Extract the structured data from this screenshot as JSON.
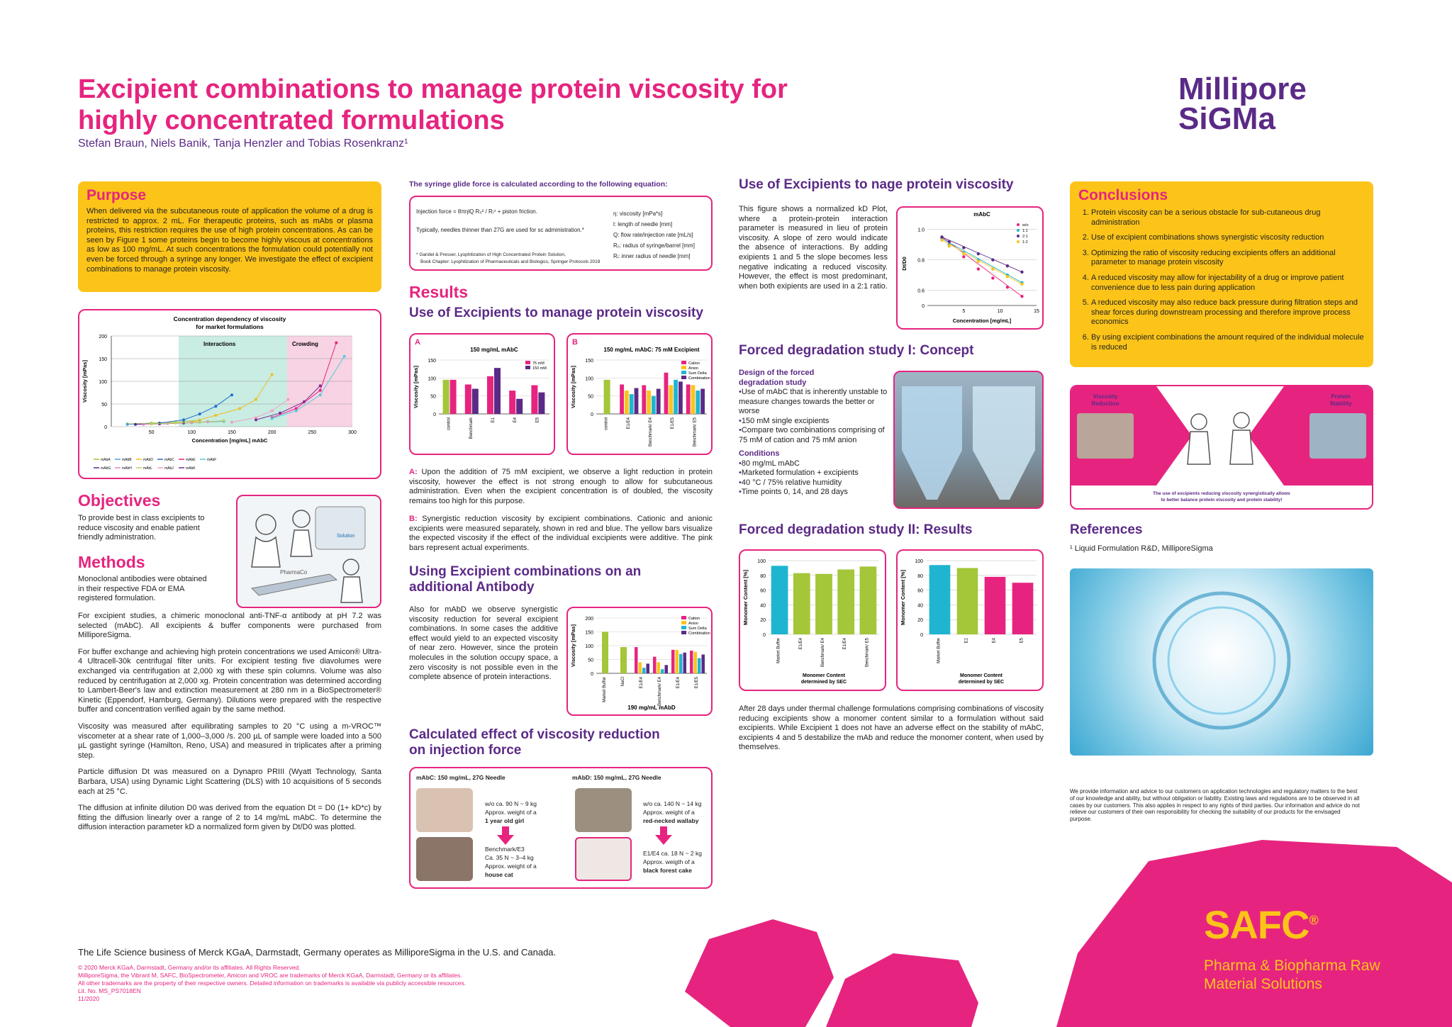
{
  "header": {
    "title_line1": "Excipient combinations to manage protein viscosity for",
    "title_line2": "highly concentrated formulations",
    "authors": "Stefan Braun, Niels Banik, Tanja Henzler and Tobias Rosenkranz¹",
    "logo_line1": "Millipore",
    "logo_line2": "SiGMa"
  },
  "purpose": {
    "heading": "Purpose",
    "text": "When delivered via the subcutaneous route of application the volume of a drug is restricted to approx. 2 mL. For therapeutic proteins, such as mAbs or plasma proteins, this restriction requires the use of high protein concentrations. As can be seen by Figure 1 some proteins begin to become highly viscous at concentrations as low as 100 mg/mL. At such concentrations the formulation could potentially not even be forced through a syringe any longer. We investigate the effect of excipient combinations to manage protein viscosity."
  },
  "conc_chart": {
    "title1": "Concentration dependency of viscosity",
    "title2": "for market formulations",
    "zone1": "Interactions",
    "zone2": "Crowding",
    "xlabel": "Concentration [mg/mL] mAbC",
    "ylabel": "Viscosity [mPas]",
    "yticks": [
      "200",
      "150",
      "100",
      "50",
      "0"
    ],
    "xticks": [
      "50",
      "100",
      "150",
      "200",
      "250",
      "300"
    ],
    "legend": [
      "mAbA",
      "mAbB",
      "mAbD",
      "mAbC",
      "mAbE",
      "mAbF",
      "mAbG",
      "mAbH",
      "mAbL",
      "mAbJ",
      "mAbK"
    ]
  },
  "objectives": {
    "heading": "Objectives",
    "text": "To provide best in class excipients to reduce viscosity and enable patient friendly administration."
  },
  "methods": {
    "heading": "Methods",
    "p1": "Monoclonal antibodies were obtained in their respective FDA or EMA registered formulation.",
    "p2": "For excipient studies, a chimeric monoclonal anti-TNF-α antibody at pH 7.2 was selected (mAbC). All excipients & buffer components were purchased from MilliporeSigma.",
    "p3": "For buffer exchange and achieving high protein concentrations we used Amicon® Ultra-4 Ultracell-30k centrifugal filter units. For excipient testing five diavolumes were exchanged via centrifugation at 2,000 xg with these spin columns. Volume was also reduced by centrifugation at 2,000 xg. Protein concentration was determined according to Lambert-Beer's law and extinction measurement at 280 nm in a BioSpectrometer® Kinetic (Eppendorf, Hamburg, Germany). Dilutions were prepared with the respective buffer and concentration verified again by the same method.",
    "p4": "Viscosity was measured after equilibrating samples to 20 °C using a m-VROC™ viscometer at a shear rate of 1,000–3,000 /s. 200 µL of sample were loaded into a 500 µL gastight syringe (Hamilton, Reno, USA) and measured in triplicates after a priming step.",
    "p5": "Particle diffusion Dt was measured on a Dynapro PRIII (Wyatt Technology, Santa Barbara, USA) using Dynamic Light Scattering (DLS) with 10 acquisitions of 5 seconds each at 25 °C.",
    "p6": "The diffusion at infinite dilution D0 was derived from the equation Dt = D0 (1+ kD*c) by fitting the diffusion linearly over a range of 2 to 14 mg/mL mAbC. To determine the diffusion interaction parameter kD a normalized form given by Dt/D0 was plotted.",
    "img_label1": "PharmaCo",
    "img_label2": "Solution"
  },
  "syringe": {
    "heading": "The syringe glide force is calculated according to the following equation:",
    "eq": "Injection force = 8πηlQ  R₀² / Rᵢ⁴  + piston friction.",
    "note": "Typically, needles thinner than 27G are used for sc administration.*",
    "legend": [
      "η: viscosity [mPa*s]",
      "l: length of needle [mm]",
      "Q: flow rate/injection rate [mL/s]",
      "R₀: radius of syringe/barrel [mm]",
      "Rᵢ: inner radius of needle [mm]"
    ],
    "ref1": "* Garidel & Presser, Lyophilization of High Concentrated Protein Solution,",
    "ref2": "Book Chapter: Lyophilization of Pharmaceuticals and Biologics, Springer Protocols 2019"
  },
  "results": {
    "heading": "Results",
    "sub": "Use of Excipients to manage protein viscosity",
    "a_text": "Upon the addition of 75 mM excipient, we observe a light reduction in protein viscosity, however the effect is not strong enough to allow for subcutaneous administration. Even when the excipient concentration is of doubled, the viscosity remains too high for this purpose.",
    "b_text": "Synergistic reduction viscosity by excipient combinations. Cationic and anionic excipients were measured separately, shown in red and blue. The yellow bars visualize the expected viscosity if the effect of the individual excipients were additive. The pink bars represent actual experiments.",
    "a_tag": "A:",
    "b_tag": "B:"
  },
  "chartA": {
    "letter": "A",
    "title": "150 mg/mL mAbC",
    "ylabel": "Viscosity [mPas]",
    "yticks": [
      "150",
      "100",
      "50",
      "0"
    ],
    "legend": [
      "75 mM",
      "150 mM"
    ],
    "cats": [
      "control",
      "Benchmark",
      "E1",
      "E4",
      "E5"
    ]
  },
  "chartB": {
    "letter": "B",
    "title": "150 mg/mL mAbC: 75 mM Excipient",
    "ylabel": "Viscosity [mPas]",
    "yticks": [
      "150",
      "100",
      "50",
      "0"
    ],
    "legend": [
      "Cation",
      "Anion",
      "Sum Delta",
      "Combination"
    ],
    "cats": [
      "control",
      "E1/E4",
      "Benchmark/ E4",
      "E1/E5",
      "Benchmark/ E5"
    ]
  },
  "combo": {
    "heading1": "Using Excipient combinations on an",
    "heading2": "additional Antibody",
    "text": "Also for mAbD we observe synergistic viscosity reduction for several excipient combinations. In some cases the additive effect would yield to an expected viscosity of near zero. However, since the protein molecules in the solution occupy space, a zero viscosity is not possible even in the complete absence of protein interactions."
  },
  "chartD": {
    "title": "190 mg/mL mAbD",
    "ylabel": "Viscosity [mPas]",
    "yticks": [
      "200",
      "150",
      "100",
      "50",
      "0"
    ],
    "legend": [
      "Cation",
      "Anion",
      "Sum Delta",
      "Combination"
    ],
    "cats": [
      "Market Buffer",
      "NaCl",
      "E1/E4",
      "Benchmark/ E4",
      "E1/E4",
      "E1/E5"
    ]
  },
  "injection": {
    "heading1": "Calculated effect of viscosity reduction",
    "heading2": "on injection force",
    "c1_title": "mAbC: 150 mg/mL, 27G Needle",
    "c1_t1": "w/o ca. 90 N ~ 9 kg",
    "c1_t2": "Approx. weight of a",
    "c1_t3": "1 year old girl",
    "c1_t4": "Benchmark/E3",
    "c1_t5": "Ca. 35 N ~ 3–4 kg",
    "c1_t6": "Approx. weight of a",
    "c1_t7": "house cat",
    "c2_title": "mAbD: 150 mg/mL, 27G Needle",
    "c2_t1": "w/o ca. 140 N ~ 14 kg",
    "c2_t2": "Approx. weight of a",
    "c2_t3": "red-necked wallaby",
    "c2_t4": "E1/E4 ca. 18 N ~ 2 kg",
    "c2_t5": "Approx. weigth of a",
    "c2_t6": "black forest cake"
  },
  "kd": {
    "heading": "Use of Excipients to  nage protein viscosity",
    "text": "This figure shows a normalized kD Plot, where a protein-protein interaction parameter is measured in lieu of protein viscosity. A slope of zero would indicate the absence of interactions. By adding exipients 1 and 5 the slope becomes less negative indicating a reduced viscosity. However, the effect is most predominant, when both exipients are used in a 2:1 ratio.",
    "chart_title": "mAbC",
    "xlabel": "Concentration [mg/mL]",
    "ylabel": "Dt/D0",
    "yticks": [
      "1.0",
      "0.8",
      "0.6",
      "0"
    ],
    "xticks": [
      "5",
      "10",
      "15"
    ],
    "legend": [
      "w/o",
      "1:1",
      "2:1",
      "1:2"
    ]
  },
  "forced1": {
    "heading": "Forced degradation study I: Concept",
    "design_h1": "Design of the forced",
    "design_h2": "degradation study",
    "design": [
      "Use of mAbC that is inherently unstable to measure changes towards the better or worse",
      "150 mM single excipients",
      "Compare two combinations comprising of 75 mM of cation and 75 mM anion"
    ],
    "cond_h": "Conditions",
    "cond": [
      "80 mg/mL mAbC",
      "Marketed formulation + excipients",
      "40 °C / 75% relative humidity",
      "Time points 0, 14, and 28 days"
    ]
  },
  "forced2": {
    "heading": "Forced degradation study II: Results",
    "ylabel": "Monomer Content [%]",
    "yticks": [
      "100",
      "80",
      "60",
      "40",
      "20",
      "0"
    ],
    "xl1": "Monomer Content",
    "xl2": "determined by SEC",
    "c1_cats": [
      "Market Buffer",
      "E1/E4",
      "Benchmark/ E4",
      "E1/E4",
      "Benchmark/ E5"
    ],
    "c2_cats": [
      "Market Buffer",
      "E1",
      "E4",
      "E5"
    ],
    "text": "After 28 days under thermal challenge formulations comprising combinations of viscosity reducing excipients show a monomer content similar to a formulation without said excipients. While Excipient 1 does not have an adverse effect on the stability of mAbC, excipients 4 and 5 destabilize the mAb and reduce the monomer content, when used by themselves."
  },
  "conclusions": {
    "heading": "Conclusions",
    "items": [
      "Protein viscosity can be a serious obstacle for sub-cutaneous drug administration",
      "Use of excipient combinations shows synergistic viscosity reduction",
      "Optimizing the ratio of viscosity reducing excipients offers an additional parameter to manage protein viscosity",
      "A reduced viscosity may allow for injectability of a drug or improve patient convenience due to less pain during application",
      "A reduced viscosity may also reduce back pressure during filtration steps and shear forces during downstream processing and therefore improve process economics",
      "By using excipient combinations the amount required of the individual molecule is reduced"
    ]
  },
  "balance": {
    "left1": "Viscosity",
    "left2": "Reduction",
    "right1": "Protein",
    "right2": "Stability",
    "caption1": "The use of excipients reducing viscosity synergistically allows",
    "caption2": "to better balance protein viscosity and protein stability!"
  },
  "references": {
    "heading": "References",
    "item": "¹ Liquid Formulation R&D, MilliporeSigma"
  },
  "disclaimer": "We provide information and advice to our customers on application technologies and regulatory matters to the best of our knowledge and ability, but without obligation or liability. Existing laws and regulations are to be observed in all cases by our customers. This also applies in respect to any rights of third parties. Our information and advice do not relieve our customers of their own responsibility for checking the suitability of our products for the envisaged purpose.",
  "footer": {
    "main": "The Life Science business of Merck KGaA, Darmstadt, Germany operates as MilliporeSigma in the U.S. and Canada.",
    "l1": "© 2020 Merck KGaA, Darmstadt, Germany and/or its affiliates. All Rights Reserved.",
    "l2": "MilliporeSigma, the Vibrant M, SAFC, BioSpectrometer, Amicon and VROC are trademarks of Merck KGaA, Darmstadt, Germany or its affiliates.",
    "l3": "All other trademarks are the property of their respective owners. Detailed information on trademarks is available via publicly accessible resources.",
    "l4": "Lit. No. MS_PS7018EN",
    "l5": "11/2020",
    "safc": "SAFC",
    "safc_reg": "®",
    "tag1": "Pharma & Biopharma Raw",
    "tag2": "Material Solutions"
  },
  "colors": {
    "magenta": "#e6247f",
    "purple": "#5b2a86",
    "yellow": "#fcc419",
    "cyan": "#1fb5d0",
    "green": "#a4c639"
  },
  "chart_data": [
    {
      "type": "line",
      "title": "Concentration dependency of viscosity for market formulations",
      "xlabel": "Concentration [mg/mL] mAbC",
      "ylabel": "Viscosity [mPas]",
      "xlim": [
        0,
        300
      ],
      "ylim": [
        0,
        200
      ],
      "series": [
        {
          "name": "mAbA",
          "x": [
            20,
            50,
            80,
            110
          ],
          "y": [
            6,
            8,
            10,
            14
          ]
        },
        {
          "name": "mAbB",
          "x": [
            20,
            60,
            100,
            140
          ],
          "y": [
            5,
            7,
            9,
            12
          ]
        },
        {
          "name": "mAbD",
          "x": [
            100,
            130,
            160,
            180,
            200
          ],
          "y": [
            10,
            25,
            40,
            60,
            115
          ]
        },
        {
          "name": "mAbC",
          "x": [
            60,
            90,
            110,
            130,
            150
          ],
          "y": [
            8,
            15,
            28,
            45,
            70
          ]
        },
        {
          "name": "mAbE",
          "x": [
            200,
            230,
            260,
            280
          ],
          "y": [
            20,
            40,
            80,
            185
          ]
        },
        {
          "name": "mAbF",
          "x": [
            200,
            230,
            260,
            290
          ],
          "y": [
            18,
            35,
            70,
            155
          ]
        },
        {
          "name": "mAbG",
          "x": [
            30,
            60,
            90,
            110
          ],
          "y": [
            5,
            6,
            8,
            10
          ]
        },
        {
          "name": "mAbH",
          "x": [
            40,
            70,
            100,
            120
          ],
          "y": [
            5,
            7,
            9,
            11
          ]
        },
        {
          "name": "mAbL",
          "x": [
            50,
            80,
            110,
            140
          ],
          "y": [
            6,
            8,
            10,
            13
          ]
        },
        {
          "name": "mAbJ",
          "x": [
            150,
            180,
            200,
            220
          ],
          "y": [
            10,
            20,
            35,
            60
          ]
        },
        {
          "name": "mAbK",
          "x": [
            180,
            210,
            240,
            260
          ],
          "y": [
            15,
            30,
            55,
            90
          ]
        }
      ]
    },
    {
      "type": "bar",
      "title": "150 mg/mL mAbC",
      "ylabel": "Viscosity [mPas]",
      "ylim": [
        0,
        150
      ],
      "categories": [
        "control",
        "Benchmark",
        "E1",
        "E4",
        "E5"
      ],
      "series": [
        {
          "name": "75 mM",
          "values": [
            95,
            82,
            105,
            65,
            80
          ]
        },
        {
          "name": "150 mM",
          "values": [
            null,
            70,
            128,
            42,
            60
          ]
        }
      ]
    },
    {
      "type": "bar",
      "title": "150 mg/mL mAbC: 75 mM Excipient",
      "ylabel": "Viscosity [mPas]",
      "ylim": [
        0,
        150
      ],
      "categories": [
        "control",
        "E1/E4",
        "Benchmark/ E4",
        "E1/E5",
        "Benchmark/ E5"
      ],
      "series": [
        {
          "name": "Cation",
          "values": [
            null,
            82,
            80,
            115,
            82
          ]
        },
        {
          "name": "Anion",
          "values": [
            null,
            65,
            65,
            80,
            80
          ]
        },
        {
          "name": "Sum Delta",
          "values": [
            null,
            55,
            50,
            95,
            65
          ]
        },
        {
          "name": "Combination",
          "values": [
            null,
            72,
            70,
            90,
            70
          ]
        }
      ],
      "control": 95
    },
    {
      "type": "bar",
      "title": "190 mg/mL mAbD",
      "ylabel": "Viscosity [mPas]",
      "ylim": [
        0,
        200
      ],
      "categories": [
        "Market Buffer",
        "NaCl",
        "E1/E4",
        "Benchmark/ E4",
        "E1/E4",
        "E1/E5"
      ],
      "series": [
        {
          "name": "Cation",
          "values": [
            null,
            null,
            95,
            60,
            85,
            82
          ]
        },
        {
          "name": "Anion",
          "values": [
            null,
            null,
            40,
            40,
            85,
            78
          ]
        },
        {
          "name": "Sum Delta",
          "values": [
            null,
            null,
            20,
            15,
            70,
            55
          ]
        },
        {
          "name": "Combination",
          "values": [
            null,
            null,
            35,
            30,
            75,
            68
          ]
        }
      ],
      "market_buffer": 150,
      "nacl": 95
    },
    {
      "type": "scatter",
      "title": "mAbC",
      "xlabel": "Concentration [mg/mL]",
      "ylabel": "Dt/D0",
      "xlim": [
        0,
        15
      ],
      "ylim": [
        0.5,
        1.05
      ],
      "series": [
        {
          "name": "w/o",
          "x": [
            2,
            3,
            5,
            7,
            9,
            11,
            13
          ],
          "y": [
            0.95,
            0.9,
            0.82,
            0.74,
            0.68,
            0.62,
            0.56
          ]
        },
        {
          "name": "1:1",
          "x": [
            2,
            3,
            5,
            7,
            9,
            11,
            13
          ],
          "y": [
            0.94,
            0.9,
            0.85,
            0.8,
            0.74,
            0.7,
            0.65
          ]
        },
        {
          "name": "2:1",
          "x": [
            2,
            3,
            5,
            7,
            9,
            11,
            13
          ],
          "y": [
            0.95,
            0.92,
            0.88,
            0.84,
            0.8,
            0.76,
            0.72
          ]
        },
        {
          "name": "1:2",
          "x": [
            2,
            3,
            5,
            7,
            9,
            11,
            13
          ],
          "y": [
            0.93,
            0.89,
            0.84,
            0.79,
            0.74,
            0.69,
            0.64
          ]
        }
      ]
    },
    {
      "type": "bar",
      "ylabel": "Monomer Content [%]",
      "xlabel": "Monomer Content determined by SEC",
      "ylim": [
        0,
        100
      ],
      "categories": [
        "Market Buffer",
        "E1/E4",
        "Benchmark/ E4",
        "E1/E4",
        "Benchmark/ E5"
      ],
      "values": [
        93,
        83,
        82,
        88,
        92
      ]
    },
    {
      "type": "bar",
      "ylabel": "Monomer Content [%]",
      "xlabel": "Monomer Content determined by SEC",
      "ylim": [
        0,
        100
      ],
      "categories": [
        "Market Buffer",
        "E1",
        "E4",
        "E5"
      ],
      "values": [
        94,
        90,
        78,
        70
      ]
    }
  ]
}
